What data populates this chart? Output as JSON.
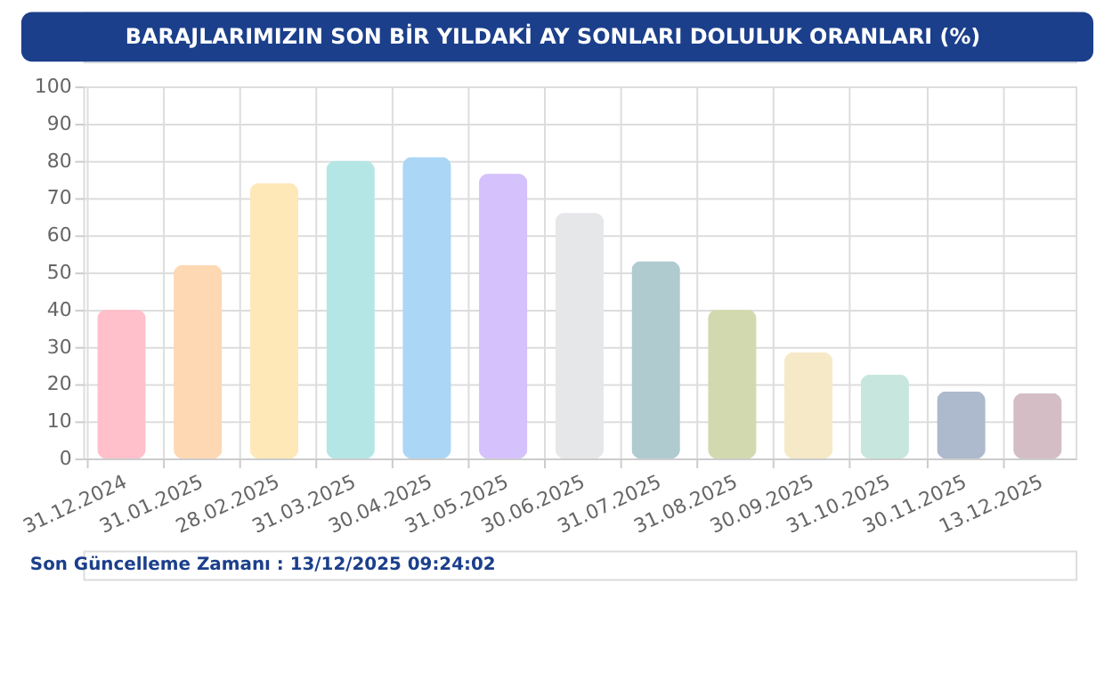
{
  "chart_data": {
    "type": "bar",
    "title": "BARAJLARIMIZIN SON BİR YILDAKİ AY SONLARI DOLULUK ORANLARI (%)",
    "categories": [
      "31.12.2024",
      "31.01.2025",
      "28.02.2025",
      "31.03.2025",
      "30.04.2025",
      "31.05.2025",
      "30.06.2025",
      "31.07.2025",
      "31.08.2025",
      "30.09.2025",
      "31.10.2025",
      "30.11.2025",
      "13.12.2025"
    ],
    "values": [
      40,
      52,
      74,
      80,
      81,
      76.5,
      66,
      53,
      40,
      28.5,
      22.5,
      18,
      17.5
    ],
    "colors": [
      "#ffc0cc",
      "#fed8b2",
      "#ffe8b8",
      "#b5e6e6",
      "#acd6f5",
      "#d5c1fb",
      "#e6e7e9",
      "#afcbcf",
      "#d3d9ae",
      "#f6e9c7",
      "#c7e7de",
      "#adb9cc",
      "#d4bdc4"
    ],
    "ylim": [
      0,
      100
    ],
    "yticks": [
      0,
      10,
      20,
      30,
      40,
      50,
      60,
      70,
      80,
      90,
      100
    ],
    "grid": true,
    "annotations": [
      "Son Güncelleme Zamanı : 13/12/2025 09:24:02"
    ]
  }
}
